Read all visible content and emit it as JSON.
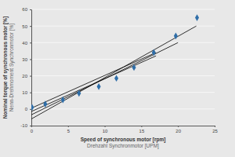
{
  "chart_data": {
    "type": "scatter",
    "xlabel": [
      "Speed of synchronous motor [rpm]",
      "Drehzahl Synchronmotor [UPM]"
    ],
    "ylabel": [
      "Nominal torque of synchronous motor [%]",
      "Nenn-Drehmoment Synchronmotor [%]"
    ],
    "xlim": [
      0,
      25
    ],
    "xticks": [
      0,
      5,
      10,
      15,
      20,
      25
    ],
    "ylim": [
      -10,
      60
    ],
    "yticks": [
      -10,
      0,
      10,
      20,
      30,
      40,
      50,
      60
    ],
    "grid": true,
    "series": [
      {
        "type": "scatter",
        "marker": "diamond",
        "color": "#2f6ea8",
        "x": [
          0.1,
          1.9,
          4.3,
          6.5,
          9.2,
          11.6,
          14,
          16.7,
          19.7,
          22.6
        ],
        "values": [
          1,
          3,
          5.5,
          9.5,
          13.5,
          18.5,
          25,
          34,
          44,
          55
        ]
      },
      {
        "type": "line",
        "color": "#000000",
        "x": [
          0,
          22.5
        ],
        "values": [
          -6,
          50
        ]
      },
      {
        "type": "line",
        "color": "#000000",
        "x": [
          0,
          20
        ],
        "values": [
          -3.5,
          40
        ]
      },
      {
        "type": "line",
        "color": "#000000",
        "x": [
          0,
          17
        ],
        "values": [
          -1.5,
          32
        ]
      },
      {
        "type": "line",
        "color": "#000000",
        "x": [
          0,
          17
        ],
        "values": [
          0.5,
          34
        ]
      }
    ]
  }
}
